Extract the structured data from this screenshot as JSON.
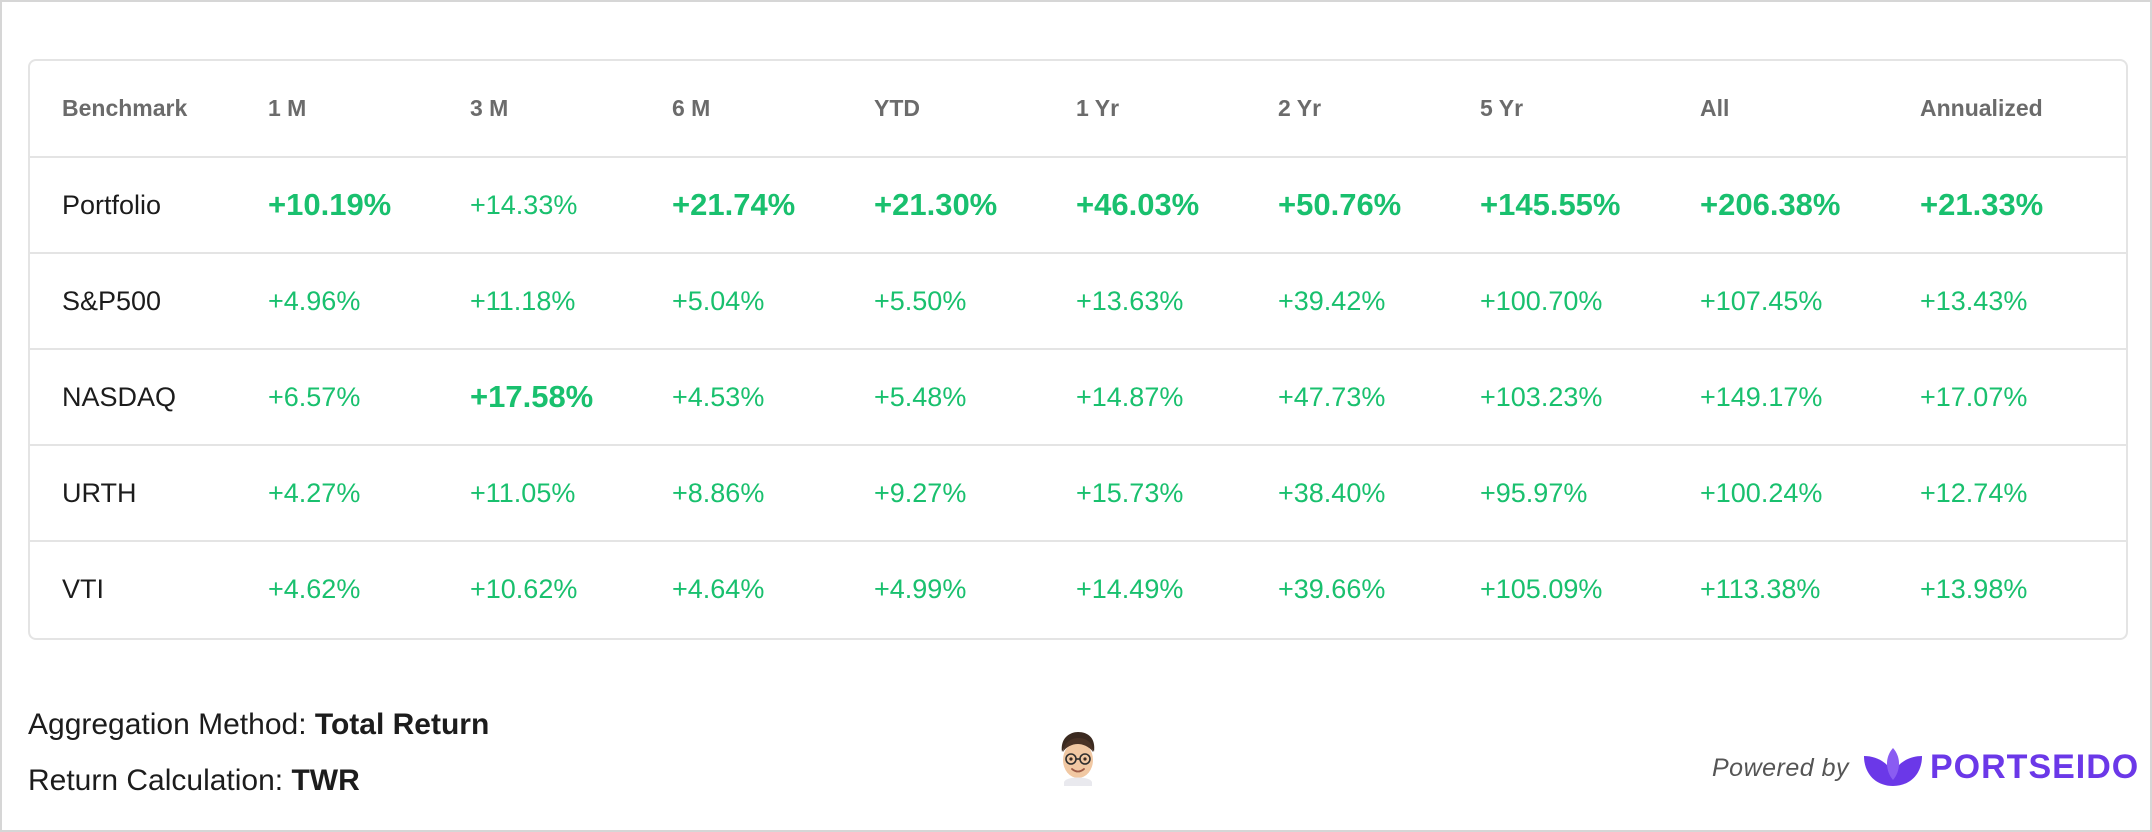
{
  "columns": [
    "Benchmark",
    "1 M",
    "3 M",
    "6 M",
    "YTD",
    "1 Yr",
    "2 Yr",
    "5 Yr",
    "All",
    "Annualized"
  ],
  "rows": [
    {
      "name": "Portfolio",
      "values": [
        "+10.19%",
        "+14.33%",
        "+21.74%",
        "+21.30%",
        "+46.03%",
        "+50.76%",
        "+145.55%",
        "+206.38%",
        "+21.33%"
      ]
    },
    {
      "name": "S&P500",
      "values": [
        "+4.96%",
        "+11.18%",
        "+5.04%",
        "+5.50%",
        "+13.63%",
        "+39.42%",
        "+100.70%",
        "+107.45%",
        "+13.43%"
      ]
    },
    {
      "name": "NASDAQ",
      "values": [
        "+6.57%",
        "+17.58%",
        "+4.53%",
        "+5.48%",
        "+14.87%",
        "+47.73%",
        "+103.23%",
        "+149.17%",
        "+17.07%"
      ]
    },
    {
      "name": "URTH",
      "values": [
        "+4.27%",
        "+11.05%",
        "+8.86%",
        "+9.27%",
        "+15.73%",
        "+38.40%",
        "+95.97%",
        "+100.24%",
        "+12.74%"
      ]
    },
    {
      "name": "VTI",
      "values": [
        "+4.62%",
        "+10.62%",
        "+4.64%",
        "+4.99%",
        "+14.49%",
        "+39.66%",
        "+105.09%",
        "+113.38%",
        "+13.98%"
      ]
    }
  ],
  "footer": {
    "aggregation_label": "Aggregation Method:",
    "aggregation_value": "Total Return",
    "return_label": "Return Calculation:",
    "return_value": "TWR",
    "powered_by": "Powered by",
    "brand": "PORTSEIDO"
  },
  "colors": {
    "positive": "#19c06e",
    "brand": "#6b38e8",
    "header_text": "#6b6b6b"
  },
  "icons": {
    "avatar": "memoji-avatar",
    "logo": "portseido-leaf-logo"
  }
}
